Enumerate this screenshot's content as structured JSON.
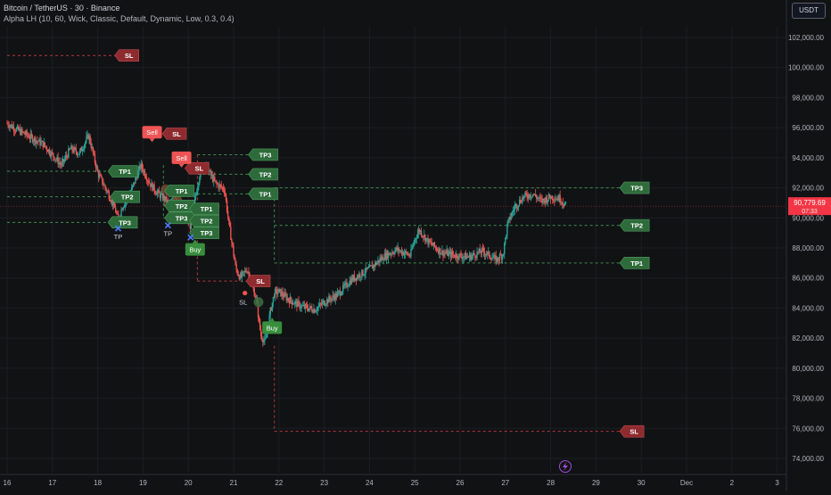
{
  "header": {
    "title": "Bitcoin / TetherUS · 30 · Binance",
    "indicator": "Alpha LH (10, 60, Wick, Classic, Default, Dynamic, Low, 0.3, 0.4)"
  },
  "currency_button": "USDT",
  "price_tag": {
    "value": "90,779.69",
    "countdown": "07:33",
    "color": "#f23645"
  },
  "colors": {
    "background": "#111214",
    "up": "#26a69a",
    "down": "#ef5350",
    "tp": "#2e6b3a",
    "sl": "#8e2b2e",
    "sell": "#f05454",
    "buy": "#388e3c",
    "tp_cross": "#4d7cff",
    "grid": "#1c1e23"
  },
  "icons": {
    "bolt": "lightning-icon",
    "tp_marker": "cross-icon",
    "sl_marker": "circle-icon"
  },
  "chart_data": {
    "type": "candlestick",
    "title": "Bitcoin / TetherUS · 30 · Binance",
    "ylim": [
      73000,
      103500
    ],
    "xlim": [
      16.0,
      34.0
    ],
    "y_ticks": [
      "102,000.00",
      "100,000.00",
      "98,000.00",
      "96,000.00",
      "94,000.00",
      "92,000.00",
      "90,000.00",
      "88,000.00",
      "86,000.00",
      "84,000.00",
      "82,000.00",
      "80,000.00",
      "78,000.00",
      "76,000.00",
      "74,000.00"
    ],
    "y_tick_values": [
      102000,
      100000,
      98000,
      96000,
      94000,
      92000,
      90000,
      88000,
      86000,
      84000,
      82000,
      80000,
      78000,
      76000,
      74000
    ],
    "x_ticks": [
      "16",
      "17",
      "18",
      "19",
      "20",
      "21",
      "22",
      "23",
      "24",
      "25",
      "26",
      "27",
      "28",
      "29",
      "30",
      "Dec",
      "2",
      "3"
    ],
    "x_tick_values": [
      16,
      17,
      18,
      19,
      20,
      21,
      22,
      23,
      24,
      25,
      26,
      27,
      28,
      29,
      30,
      31,
      32,
      33
    ],
    "price_path": [
      [
        16.0,
        96300
      ],
      [
        16.2,
        95900
      ],
      [
        16.5,
        95400
      ],
      [
        16.8,
        94900
      ],
      [
        17.0,
        94200
      ],
      [
        17.2,
        93500
      ],
      [
        17.4,
        94600
      ],
      [
        17.6,
        94300
      ],
      [
        17.8,
        95500
      ],
      [
        18.0,
        93000
      ],
      [
        18.2,
        91800
      ],
      [
        18.35,
        90900
      ],
      [
        18.45,
        89900
      ],
      [
        18.55,
        90800
      ],
      [
        18.7,
        91500
      ],
      [
        18.85,
        92700
      ],
      [
        18.95,
        93500
      ],
      [
        19.05,
        92900
      ],
      [
        19.15,
        92300
      ],
      [
        19.3,
        91700
      ],
      [
        19.5,
        91200
      ],
      [
        19.6,
        90800
      ],
      [
        19.7,
        91600
      ],
      [
        19.8,
        91000
      ],
      [
        19.95,
        90100
      ],
      [
        20.05,
        89400
      ],
      [
        20.15,
        91300
      ],
      [
        20.25,
        92900
      ],
      [
        20.35,
        93800
      ],
      [
        20.45,
        93100
      ],
      [
        20.6,
        92300
      ],
      [
        20.8,
        91900
      ],
      [
        20.9,
        89500
      ],
      [
        21.0,
        87600
      ],
      [
        21.05,
        86600
      ],
      [
        21.15,
        86000
      ],
      [
        21.3,
        86600
      ],
      [
        21.4,
        85600
      ],
      [
        21.5,
        84600
      ],
      [
        21.6,
        82200
      ],
      [
        21.7,
        81700
      ],
      [
        21.8,
        83600
      ],
      [
        21.9,
        85000
      ],
      [
        22.0,
        85100
      ],
      [
        22.2,
        84600
      ],
      [
        22.5,
        84100
      ],
      [
        22.8,
        83900
      ],
      [
        23.0,
        84400
      ],
      [
        23.3,
        84900
      ],
      [
        23.6,
        85900
      ],
      [
        24.0,
        86600
      ],
      [
        24.3,
        87400
      ],
      [
        24.6,
        87900
      ],
      [
        24.9,
        87500
      ],
      [
        25.0,
        88600
      ],
      [
        25.1,
        89200
      ],
      [
        25.3,
        88400
      ],
      [
        25.6,
        87700
      ],
      [
        25.9,
        87500
      ],
      [
        26.2,
        87400
      ],
      [
        26.5,
        87800
      ],
      [
        26.8,
        87200
      ],
      [
        26.95,
        87600
      ],
      [
        27.05,
        89600
      ],
      [
        27.2,
        90700
      ],
      [
        27.4,
        91400
      ],
      [
        27.6,
        91600
      ],
      [
        27.8,
        91100
      ],
      [
        28.0,
        91400
      ],
      [
        28.2,
        91300
      ],
      [
        28.35,
        90780
      ]
    ],
    "levels": [
      {
        "label": "SL",
        "kind": "sl",
        "price": 100800,
        "x_start": 16.0,
        "x_end": 18.55,
        "label_x": 18.75
      },
      {
        "label": "SL",
        "kind": "sl",
        "price": 95600,
        "x_start": 19.55,
        "x_end": 19.6,
        "label_x": 19.8
      },
      {
        "label": "TP1",
        "kind": "tp",
        "price": 93100,
        "x_start": 16.0,
        "x_end": 18.4,
        "label_x": 18.6
      },
      {
        "label": "TP2",
        "kind": "tp",
        "price": 91400,
        "x_start": 16.0,
        "x_end": 18.4,
        "label_x": 18.65
      },
      {
        "label": "TP3",
        "kind": "tp",
        "price": 89700,
        "x_start": 16.0,
        "x_end": 18.4,
        "label_x": 18.6
      },
      {
        "label": "TP1",
        "kind": "tp",
        "price": 91800,
        "x_start": 19.45,
        "x_end": 19.6,
        "label_x": 19.85
      },
      {
        "label": "TP2",
        "kind": "tp",
        "price": 90800,
        "x_start": 19.45,
        "x_end": 19.6,
        "label_x": 19.85
      },
      {
        "label": "TP3",
        "kind": "tp",
        "price": 90000,
        "x_start": 19.45,
        "x_end": 19.6,
        "label_x": 19.85
      },
      {
        "label": "SL",
        "kind": "sl",
        "price": 93300,
        "x_start": 20.2,
        "x_end": 20.2,
        "label_x": 20.3
      },
      {
        "label": "TP3",
        "kind": "tp",
        "price": 94200,
        "x_start": 20.2,
        "x_end": 21.4,
        "label_x": 21.7
      },
      {
        "label": "TP2",
        "kind": "tp",
        "price": 92900,
        "x_start": 20.2,
        "x_end": 21.4,
        "label_x": 21.7
      },
      {
        "label": "TP1",
        "kind": "tp",
        "price": 91600,
        "x_start": 20.2,
        "x_end": 21.4,
        "label_x": 21.7
      },
      {
        "label": "TP1",
        "kind": "tp",
        "price": 90600,
        "x_start": 20.2,
        "x_end": 20.2,
        "label_x": 20.4
      },
      {
        "label": "TP2",
        "kind": "tp",
        "price": 89800,
        "x_start": 20.2,
        "x_end": 20.2,
        "label_x": 20.4
      },
      {
        "label": "TP3",
        "kind": "tp",
        "price": 89000,
        "x_start": 20.2,
        "x_end": 20.2,
        "label_x": 20.4
      },
      {
        "label": "SL",
        "kind": "sl",
        "price": 85800,
        "x_start": 20.2,
        "x_end": 21.45,
        "label_x": 21.65
      },
      {
        "label": "TP3",
        "kind": "tp",
        "price": 92000,
        "x_start": 21.9,
        "x_end": 29.6,
        "label_x": 29.9
      },
      {
        "label": "TP2",
        "kind": "tp",
        "price": 89500,
        "x_start": 21.9,
        "x_end": 29.6,
        "label_x": 29.9
      },
      {
        "label": "TP1",
        "kind": "tp",
        "price": 87000,
        "x_start": 21.9,
        "x_end": 29.6,
        "label_x": 29.9
      },
      {
        "label": "SL",
        "kind": "sl",
        "price": 75800,
        "x_start": 21.9,
        "x_end": 29.6,
        "label_x": 29.9
      }
    ],
    "vertical_connectors": [
      {
        "x": 19.45,
        "from": 93500,
        "to": 90000,
        "kind": "tp"
      },
      {
        "x": 20.2,
        "from": 94200,
        "to": 85800,
        "kind": "sl"
      },
      {
        "x": 21.9,
        "from": 81500,
        "to": 75800,
        "kind": "sl"
      },
      {
        "x": 21.9,
        "from": 92000,
        "to": 87000,
        "kind": "tp"
      }
    ],
    "signals": [
      {
        "label": "Sell",
        "kind": "sell",
        "x": 19.2,
        "price": 95700
      },
      {
        "label": "Sell",
        "kind": "sell",
        "x": 19.85,
        "price": 94000
      },
      {
        "label": "Buy",
        "kind": "buy",
        "x": 20.15,
        "price": 87900
      },
      {
        "label": "Buy",
        "kind": "buy",
        "x": 21.85,
        "price": 82700
      }
    ],
    "tp_markers": [
      {
        "label": "TP",
        "x": 18.45,
        "price": 89300
      },
      {
        "label": "TP",
        "x": 19.55,
        "price": 89500
      },
      {
        "label": "",
        "x": 20.05,
        "price": 88700
      }
    ],
    "sl_markers": [
      {
        "label": "SL",
        "x": 21.25,
        "price": 85000
      }
    ],
    "entry_circles": [
      {
        "x": 18.6,
        "price": 91400,
        "kind": "sell"
      },
      {
        "x": 19.5,
        "price": 91900,
        "kind": "sell"
      },
      {
        "x": 19.75,
        "price": 91200,
        "kind": "sell"
      },
      {
        "x": 21.55,
        "price": 84400,
        "kind": "buy"
      }
    ],
    "current_price": 90779.69
  }
}
